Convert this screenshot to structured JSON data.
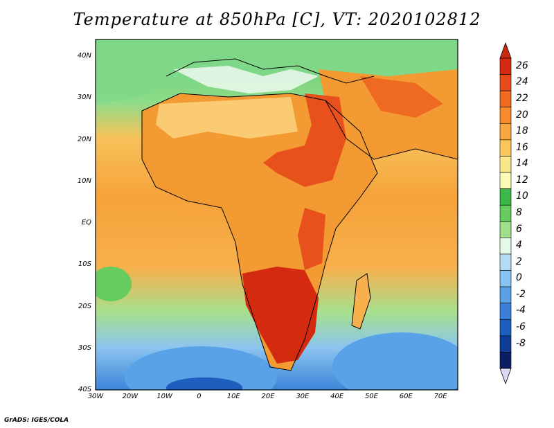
{
  "title": "Temperature at 850hPa [C], VT: 2020102812",
  "credit": "GrADS: IGES/COLA",
  "map": {
    "lat_labels": [
      "40N",
      "30N",
      "20N",
      "10N",
      "EQ",
      "10S",
      "20S",
      "30S",
      "40S"
    ],
    "lon_labels": [
      "30W",
      "20W",
      "10W",
      "0",
      "10E",
      "20E",
      "30E",
      "40E",
      "50E",
      "60E",
      "70E"
    ],
    "lat_range": [
      -40,
      44
    ],
    "lon_range": [
      -30,
      75
    ]
  },
  "colorbar": {
    "labels": [
      "26",
      "24",
      "22",
      "20",
      "18",
      "16",
      "14",
      "12",
      "10",
      "8",
      "6",
      "4",
      "2",
      "0",
      "-2",
      "-4",
      "-6",
      "-8"
    ],
    "colors": [
      "#d42a10",
      "#e84a1a",
      "#f06a22",
      "#f68a2c",
      "#f9a840",
      "#fac85a",
      "#fae78a",
      "#fefbb8",
      "#3cb84a",
      "#66cc5e",
      "#a0e08a",
      "#e6f8e6",
      "#b4dcf4",
      "#88c2f0",
      "#5aa2e8",
      "#3a80d8",
      "#1e5ebe",
      "#0e3c96",
      "#0a1e66"
    ],
    "top_arrow_color": "#cc2a10",
    "bottom_arrow_color": "#ddd8f6"
  }
}
